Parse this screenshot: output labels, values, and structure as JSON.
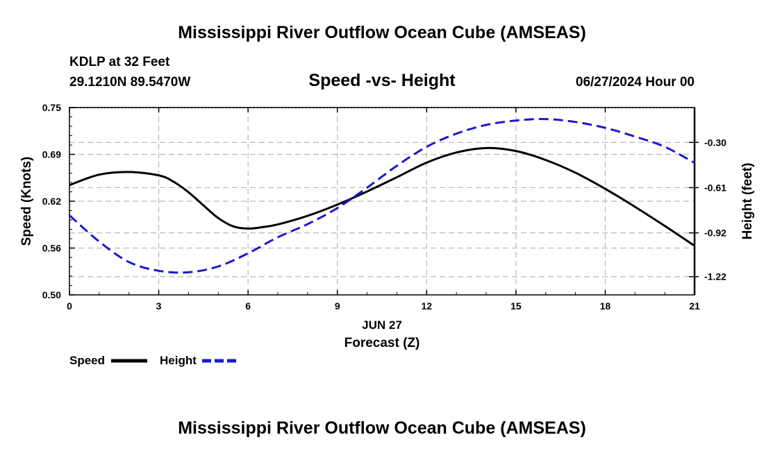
{
  "header": {
    "title": "Mississippi River Outflow Ocean Cube (AMSEAS)",
    "station": "KDLP at 32 Feet",
    "coords": "29.1210N  89.5470W",
    "date": "06/27/2024 Hour 00",
    "footer_title": "Mississippi River Outflow Ocean Cube (AMSEAS)"
  },
  "chart_data": {
    "type": "line",
    "title": "Speed -vs- Height",
    "xlabel": "Forecast (Z)",
    "date_label": "JUN 27",
    "ylabel_left": "Speed (Knots)",
    "ylabel_right": "Height (feet)",
    "xlim": [
      0,
      21
    ],
    "ylim_left": [
      0.5,
      0.75
    ],
    "ylim_right": [
      -1.345,
      -0.061
    ],
    "x_ticks": [
      "0",
      "3",
      "6",
      "9",
      "12",
      "15",
      "18",
      "21"
    ],
    "x_tick_values": [
      0,
      3,
      6,
      9,
      12,
      15,
      18,
      21
    ],
    "y_left_ticks": [
      "0.50",
      "0.56",
      "0.62",
      "0.69",
      "0.75"
    ],
    "y_left_tick_values": [
      0.5,
      0.5625,
      0.625,
      0.6875,
      0.75
    ],
    "y_right_ticks": [
      "-0.30",
      "-0.61",
      "-0.92",
      "-1.22"
    ],
    "y_right_tick_values": [
      -0.3,
      -0.61,
      -0.92,
      -1.22
    ],
    "grid": true,
    "series": [
      {
        "name": "Speed",
        "axis": "left",
        "color": "#000000",
        "style": "solid",
        "x": [
          0,
          1,
          2,
          3,
          3.5,
          4,
          4.5,
          5,
          5.5,
          6,
          6.5,
          7,
          8,
          9,
          10,
          11,
          12,
          13,
          14,
          15,
          16,
          17,
          18,
          19,
          20,
          21
        ],
        "values": [
          0.6465,
          0.6605,
          0.664,
          0.6595,
          0.651,
          0.637,
          0.6195,
          0.6025,
          0.5915,
          0.5885,
          0.5905,
          0.594,
          0.6055,
          0.6205,
          0.638,
          0.657,
          0.6765,
          0.69,
          0.696,
          0.692,
          0.68,
          0.663,
          0.6415,
          0.6175,
          0.592,
          0.5655
        ]
      },
      {
        "name": "Height",
        "axis": "right",
        "color": "#1a1acc",
        "style": "dashed",
        "x": [
          0,
          1,
          2,
          3,
          4,
          5,
          6,
          7,
          8,
          9,
          10,
          11,
          12,
          13,
          14,
          15,
          16,
          17,
          18,
          19,
          20,
          21
        ],
        "values": [
          -0.8,
          -0.98,
          -1.12,
          -1.18,
          -1.19,
          -1.15,
          -1.06,
          -0.95,
          -0.86,
          -0.75,
          -0.61,
          -0.46,
          -0.33,
          -0.24,
          -0.18,
          -0.15,
          -0.14,
          -0.16,
          -0.2,
          -0.26,
          -0.33,
          -0.44
        ]
      }
    ]
  }
}
